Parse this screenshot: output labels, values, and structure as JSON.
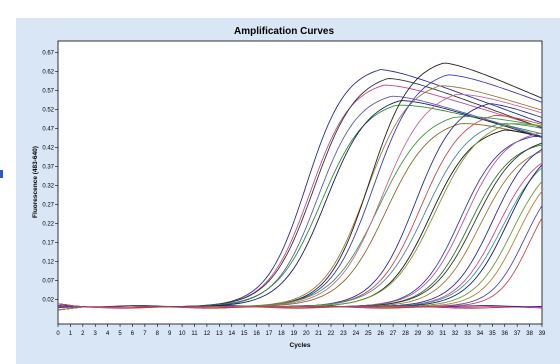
{
  "chart_data": {
    "type": "line",
    "title": "Amplification Curves",
    "xlabel": "Cycles",
    "ylabel": "Fluorescence (483-640)",
    "xlim": [
      0,
      39
    ],
    "ylim": [
      -0.045,
      0.7
    ],
    "x_ticks": [
      0,
      1,
      2,
      3,
      4,
      5,
      6,
      7,
      8,
      9,
      10,
      11,
      12,
      13,
      14,
      15,
      16,
      17,
      18,
      19,
      20,
      21,
      22,
      23,
      24,
      25,
      26,
      27,
      28,
      29,
      30,
      31,
      32,
      33,
      34,
      35,
      36,
      37,
      38,
      39
    ],
    "y_ticks": [
      0.02,
      0.07,
      0.12,
      0.17,
      0.22,
      0.27,
      0.32,
      0.37,
      0.42,
      0.47,
      0.52,
      0.57,
      0.62,
      0.67
    ],
    "y_tick_labels": [
      "0.02",
      "0.07",
      "0.12",
      "0.17",
      "0.22",
      "0.27",
      "0.32",
      "0.37",
      "0.42",
      "0.47",
      "0.52",
      "0.57",
      "0.62",
      "0.67"
    ],
    "grid": false,
    "baseline": 0.0,
    "series": [
      {
        "color": "#2b2b9a",
        "ct": 20.0,
        "plateau": 0.64,
        "k": 0.62,
        "decay": 0.012
      },
      {
        "color": "#c04a8a",
        "ct": 20.3,
        "plateau": 0.6,
        "k": 0.6,
        "decay": 0.01
      },
      {
        "color": "#333333",
        "ct": 20.6,
        "plateau": 0.62,
        "k": 0.58,
        "decay": 0.012
      },
      {
        "color": "#5a5ab8",
        "ct": 20.9,
        "plateau": 0.57,
        "k": 0.6,
        "decay": 0.01
      },
      {
        "color": "#2f8f2f",
        "ct": 21.2,
        "plateau": 0.55,
        "k": 0.55,
        "decay": 0.008
      },
      {
        "color": "#1a1a6a",
        "ct": 21.6,
        "plateau": 0.56,
        "k": 0.58,
        "decay": 0.01
      },
      {
        "color": "#a07a3a",
        "ct": 24.8,
        "plateau": 0.6,
        "k": 0.58,
        "decay": 0.01
      },
      {
        "color": "#222222",
        "ct": 25.1,
        "plateau": 0.66,
        "k": 0.6,
        "decay": 0.014
      },
      {
        "color": "#3a3ab8",
        "ct": 25.4,
        "plateau": 0.63,
        "k": 0.58,
        "decay": 0.012
      },
      {
        "color": "#3f9a3f",
        "ct": 25.8,
        "plateau": 0.52,
        "k": 0.52,
        "decay": 0.006
      },
      {
        "color": "#c06a9a",
        "ct": 26.1,
        "plateau": 0.58,
        "k": 0.55,
        "decay": 0.01
      },
      {
        "color": "#8a6a2a",
        "ct": 26.4,
        "plateau": 0.5,
        "k": 0.55,
        "decay": 0.008
      },
      {
        "color": "#2b2b9a",
        "ct": 28.8,
        "plateau": 0.55,
        "k": 0.6,
        "decay": 0.012
      },
      {
        "color": "#c84a4a",
        "ct": 29.2,
        "plateau": 0.52,
        "k": 0.58,
        "decay": 0.01
      },
      {
        "color": "#4a8a8a",
        "ct": 29.6,
        "plateau": 0.5,
        "k": 0.55,
        "decay": 0.008
      },
      {
        "color": "#1a1a1a",
        "ct": 30.0,
        "plateau": 0.48,
        "k": 0.58,
        "decay": 0.01
      },
      {
        "color": "#7a9a2a",
        "ct": 30.4,
        "plateau": 0.5,
        "k": 0.55,
        "decay": 0.008
      },
      {
        "color": "#3a3ab8",
        "ct": 32.4,
        "plateau": 0.46,
        "k": 0.62,
        "decay": 0.008
      },
      {
        "color": "#b05a9a",
        "ct": 32.8,
        "plateau": 0.47,
        "k": 0.6,
        "decay": 0.008
      },
      {
        "color": "#2a7a2a",
        "ct": 33.2,
        "plateau": 0.44,
        "k": 0.6,
        "decay": 0.006
      },
      {
        "color": "#333333",
        "ct": 33.6,
        "plateau": 0.45,
        "k": 0.58,
        "decay": 0.006
      },
      {
        "color": "#9a7a3a",
        "ct": 34.0,
        "plateau": 0.43,
        "k": 0.6,
        "decay": 0.006
      },
      {
        "color": "#2b2b9a",
        "ct": 35.0,
        "plateau": 0.45,
        "k": 0.62,
        "decay": 0.004
      },
      {
        "color": "#c84a8a",
        "ct": 35.4,
        "plateau": 0.42,
        "k": 0.62,
        "decay": 0.004
      },
      {
        "color": "#3a9a9a",
        "ct": 35.8,
        "plateau": 0.42,
        "k": 0.6,
        "decay": 0.004
      },
      {
        "color": "#1a1a6a",
        "ct": 36.2,
        "plateau": 0.44,
        "k": 0.62,
        "decay": 0.004
      },
      {
        "color": "#6a9a3a",
        "ct": 36.6,
        "plateau": 0.4,
        "k": 0.65,
        "decay": 0.004
      },
      {
        "color": "#c07a3a",
        "ct": 37.0,
        "plateau": 0.38,
        "k": 0.7,
        "decay": 0.002
      },
      {
        "color": "#4a4ab8",
        "ct": 37.6,
        "plateau": 0.36,
        "k": 0.75,
        "decay": 0.002
      },
      {
        "color": "#c84a4a",
        "ct": 38.0,
        "plateau": 0.34,
        "k": 0.8,
        "decay": 0.002
      }
    ],
    "flat_series": [
      {
        "color": "#cc2222"
      },
      {
        "color": "#c84aa8"
      },
      {
        "color": "#2a2a8a"
      }
    ]
  }
}
